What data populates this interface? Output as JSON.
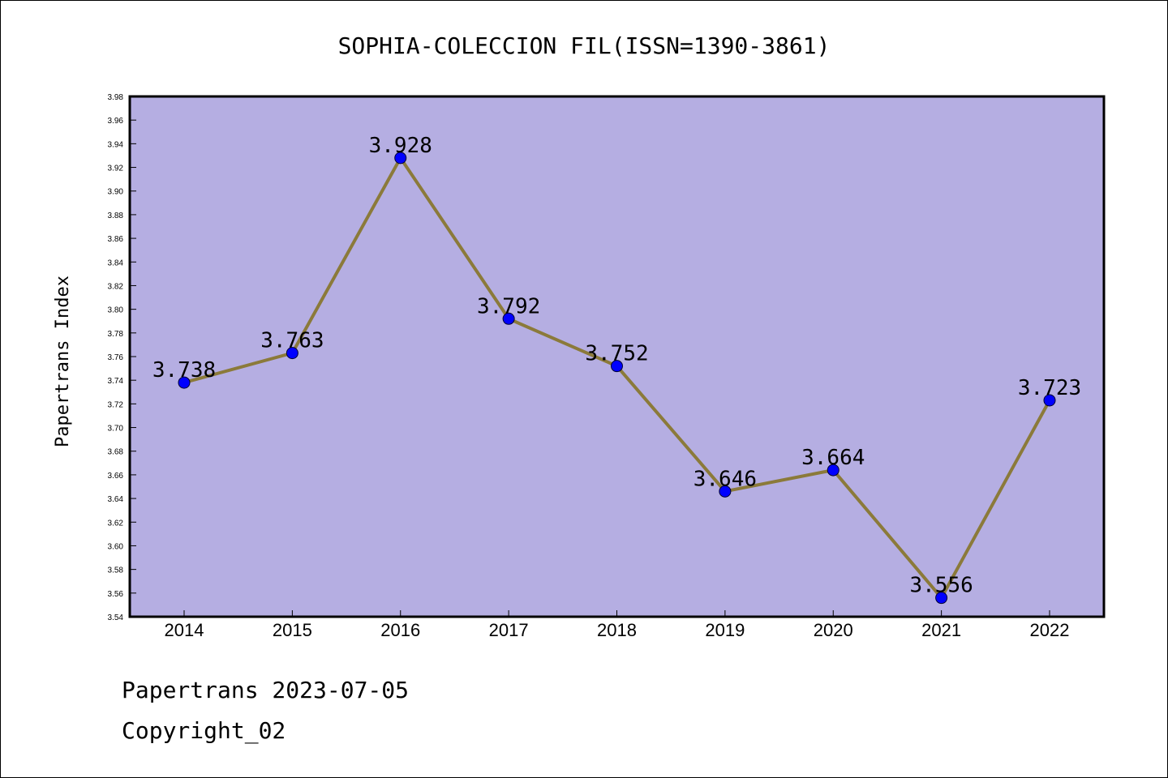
{
  "chart_data": {
    "type": "line",
    "title": "SOPHIA-COLECCION FIL(ISSN=1390-3861)",
    "xlabel": "",
    "ylabel": "Papertrans Index",
    "categories": [
      "2014",
      "2015",
      "2016",
      "2017",
      "2018",
      "2019",
      "2020",
      "2021",
      "2022"
    ],
    "series": [
      {
        "values": [
          3.738,
          3.763,
          3.928,
          3.792,
          3.752,
          3.646,
          3.664,
          3.556,
          3.723
        ]
      }
    ],
    "data_labels": [
      "3.738",
      "3.763",
      "3.928",
      "3.792",
      "3.752",
      "3.646",
      "3.664",
      "3.556",
      "3.723"
    ],
    "ylim": [
      3.54,
      3.98
    ],
    "yticks": [
      "3.54",
      "3.56",
      "3.58",
      "3.60",
      "3.62",
      "3.64",
      "3.66",
      "3.68",
      "3.70",
      "3.72",
      "3.74",
      "3.76",
      "3.78",
      "3.80",
      "3.82",
      "3.84",
      "3.86",
      "3.88",
      "3.90",
      "3.92",
      "3.94",
      "3.96",
      "3.98"
    ],
    "grid": false,
    "colors": {
      "plot_background": "#b5aee2",
      "line": "#8b7a3a",
      "marker": "#0000ff"
    }
  },
  "footer": {
    "line1": "Papertrans 2023-07-05",
    "line2": "Copyright_02"
  }
}
